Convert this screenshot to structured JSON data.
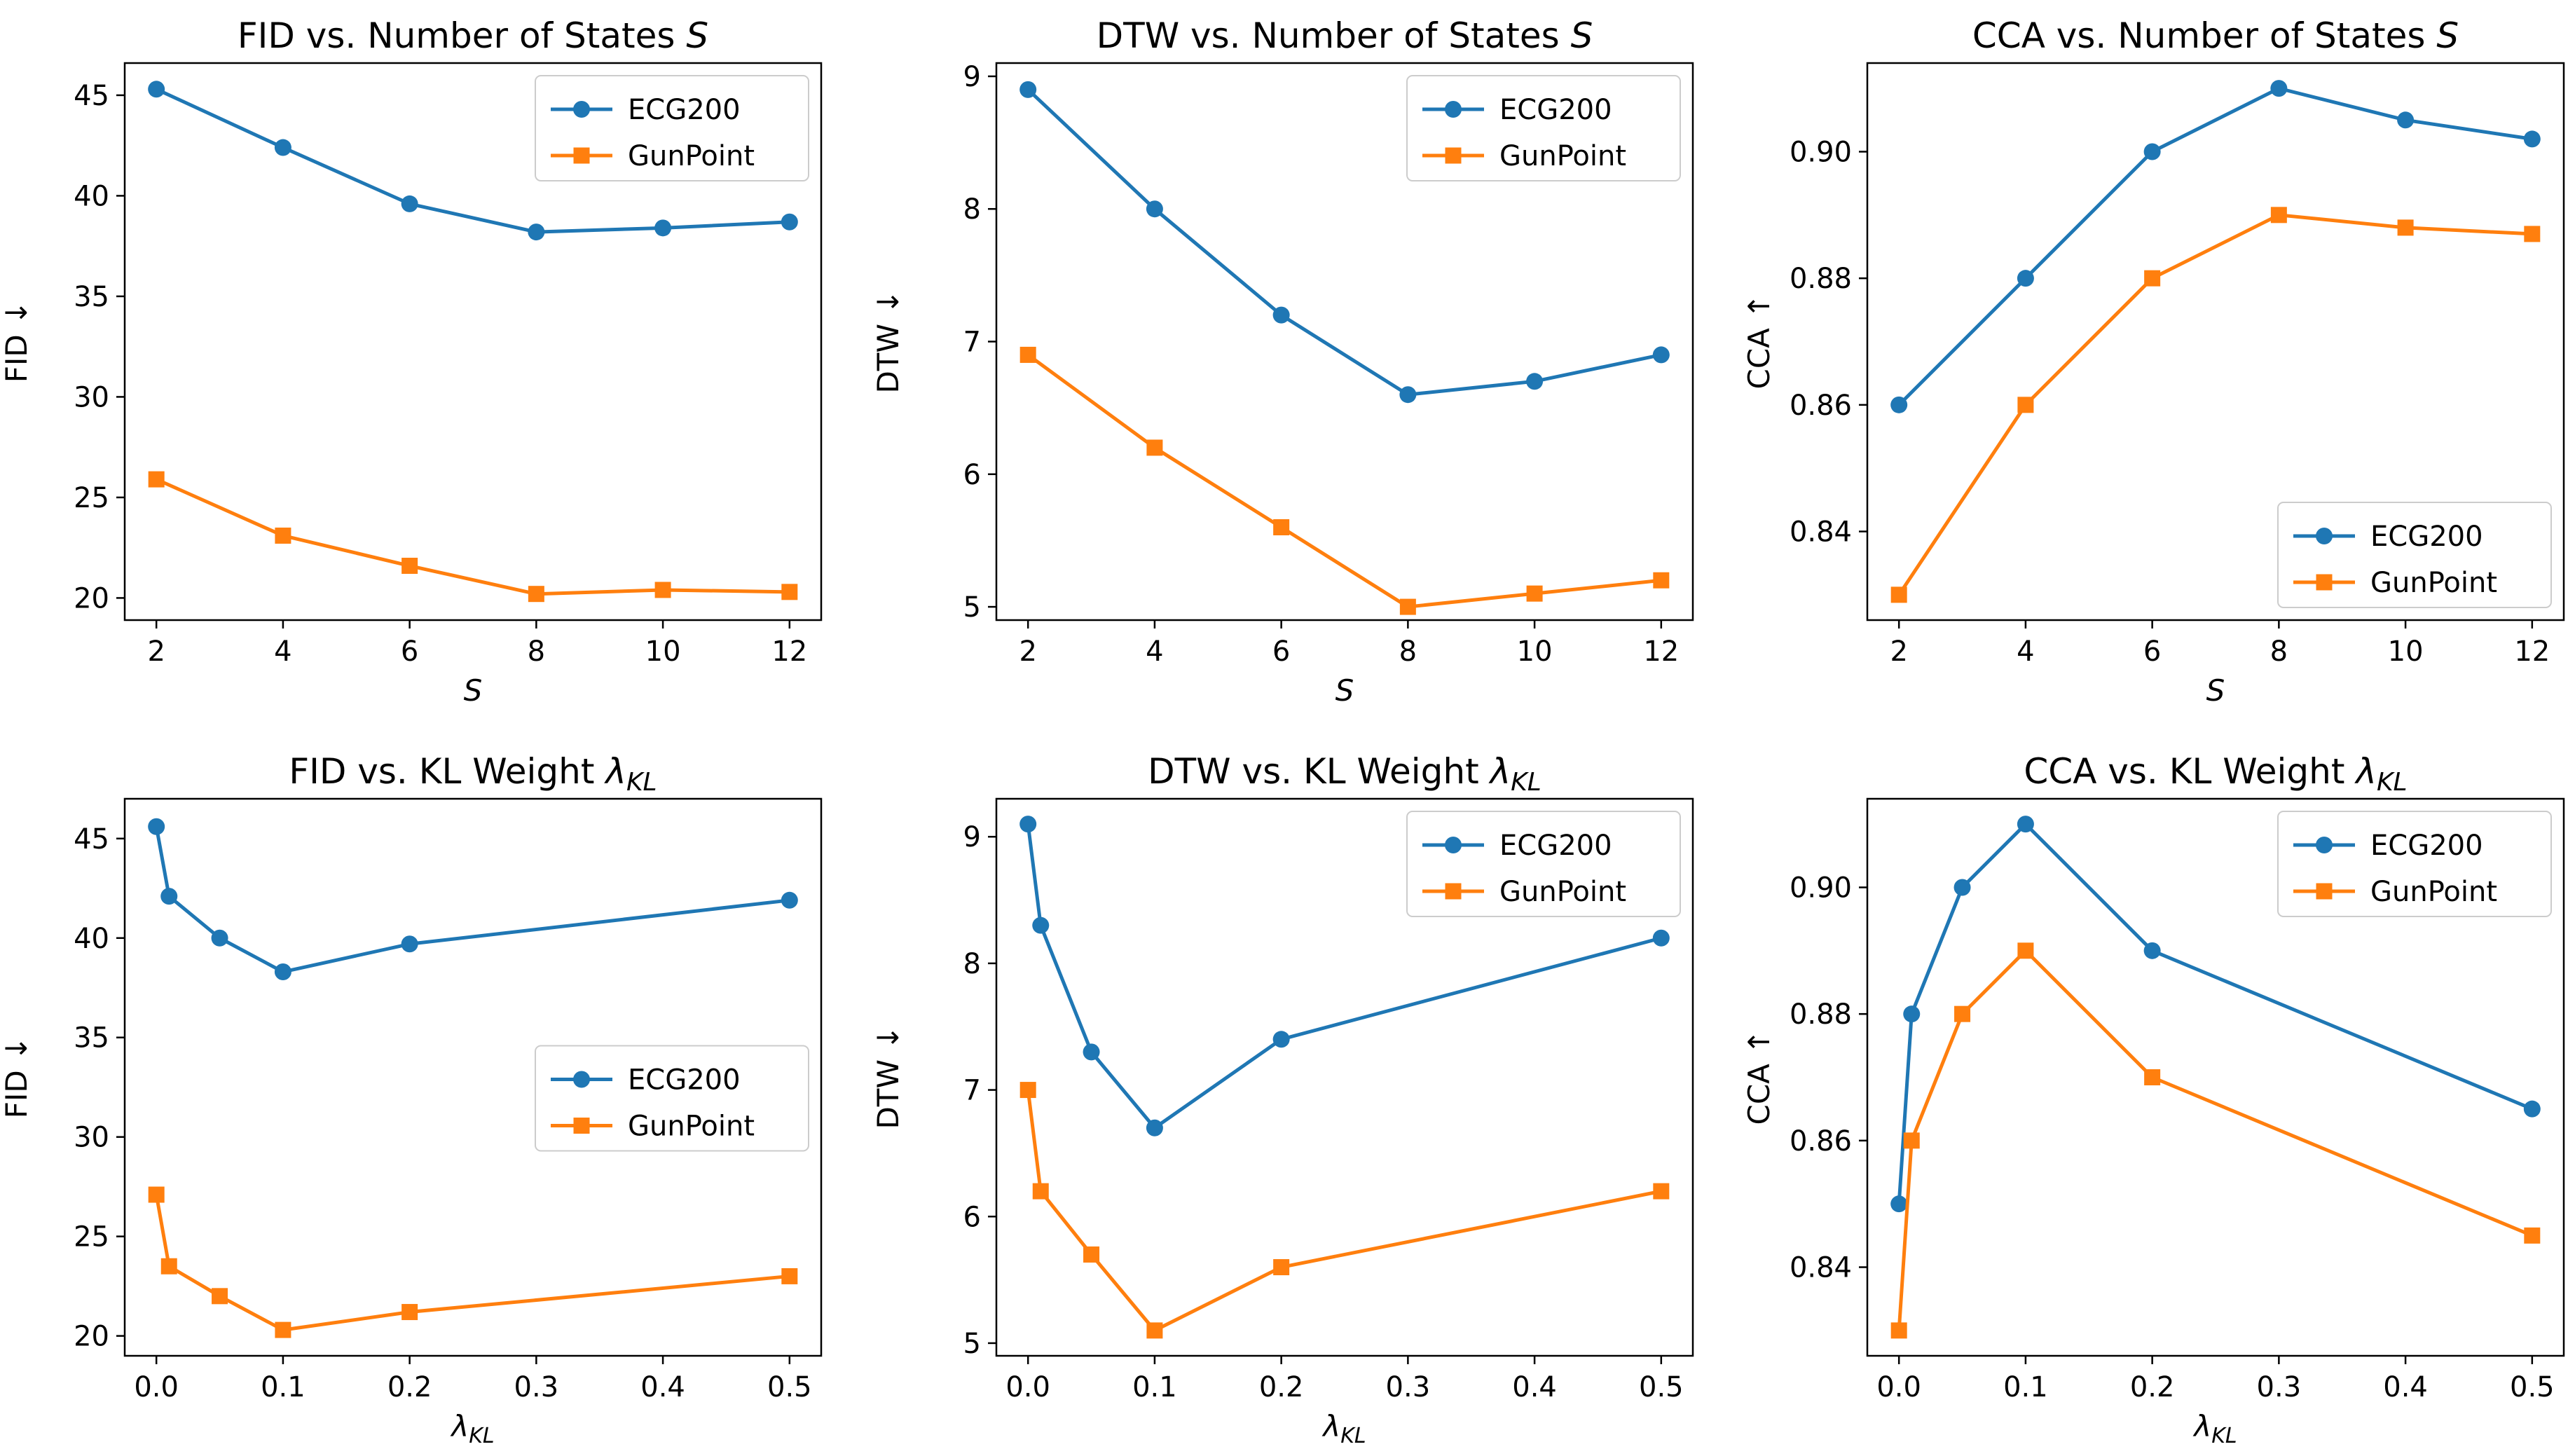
{
  "figure": {
    "colors": {
      "ECG200": "#1f77b4",
      "GunPoint": "#ff7f0e"
    },
    "markers": {
      "ECG200": "circle",
      "GunPoint": "square"
    }
  },
  "chart_data": [
    {
      "type": "line",
      "title_prefix": "FID vs. Number of States ",
      "title_symbol": "S",
      "title_subscript": "",
      "xlabel": "S",
      "xlabel_subscript": "",
      "ylabel": "FID ↓",
      "x": [
        2,
        4,
        6,
        8,
        10,
        12
      ],
      "xlim": [
        1.5,
        12.5
      ],
      "ylim": [
        18.9,
        46.6
      ],
      "xticks": [
        2,
        4,
        6,
        8,
        10,
        12
      ],
      "xtick_labels": [
        "2",
        "4",
        "6",
        "8",
        "10",
        "12"
      ],
      "yticks": [
        20,
        25,
        30,
        35,
        40,
        45
      ],
      "ytick_labels": [
        "20",
        "25",
        "30",
        "35",
        "40",
        "45"
      ],
      "legend": "upper right",
      "series": [
        {
          "name": "ECG200",
          "values": [
            45.3,
            42.4,
            39.6,
            38.2,
            38.4,
            38.7
          ]
        },
        {
          "name": "GunPoint",
          "values": [
            25.9,
            23.1,
            21.6,
            20.2,
            20.4,
            20.3
          ]
        }
      ]
    },
    {
      "type": "line",
      "title_prefix": "DTW vs. Number of States ",
      "title_symbol": "S",
      "title_subscript": "",
      "xlabel": "S",
      "xlabel_subscript": "",
      "ylabel": "DTW ↓",
      "x": [
        2,
        4,
        6,
        8,
        10,
        12
      ],
      "xlim": [
        1.5,
        12.5
      ],
      "ylim": [
        4.9,
        9.1
      ],
      "xticks": [
        2,
        4,
        6,
        8,
        10,
        12
      ],
      "xtick_labels": [
        "2",
        "4",
        "6",
        "8",
        "10",
        "12"
      ],
      "yticks": [
        5,
        6,
        7,
        8,
        9
      ],
      "ytick_labels": [
        "5",
        "6",
        "7",
        "8",
        "9"
      ],
      "legend": "upper right",
      "series": [
        {
          "name": "ECG200",
          "values": [
            8.9,
            8.0,
            7.2,
            6.6,
            6.7,
            6.9
          ]
        },
        {
          "name": "GunPoint",
          "values": [
            6.9,
            6.2,
            5.6,
            5.0,
            5.1,
            5.2
          ]
        }
      ]
    },
    {
      "type": "line",
      "title_prefix": "CCA vs. Number of States ",
      "title_symbol": "S",
      "title_subscript": "",
      "xlabel": "S",
      "xlabel_subscript": "",
      "ylabel": "CCA ↑",
      "x": [
        2,
        4,
        6,
        8,
        10,
        12
      ],
      "xlim": [
        1.5,
        12.5
      ],
      "ylim": [
        0.826,
        0.914
      ],
      "xticks": [
        2,
        4,
        6,
        8,
        10,
        12
      ],
      "xtick_labels": [
        "2",
        "4",
        "6",
        "8",
        "10",
        "12"
      ],
      "yticks": [
        0.84,
        0.86,
        0.88,
        0.9
      ],
      "ytick_labels": [
        "0.84",
        "0.86",
        "0.88",
        "0.90"
      ],
      "legend": "lower right",
      "series": [
        {
          "name": "ECG200",
          "values": [
            0.86,
            0.88,
            0.9,
            0.91,
            0.905,
            0.902
          ]
        },
        {
          "name": "GunPoint",
          "values": [
            0.83,
            0.86,
            0.88,
            0.89,
            0.888,
            0.887
          ]
        }
      ]
    },
    {
      "type": "line",
      "title_prefix": "FID vs. KL Weight ",
      "title_symbol": "λ",
      "title_subscript": "KL",
      "xlabel": "λ",
      "xlabel_subscript": "KL",
      "ylabel": "FID ↓",
      "x": [
        0.0,
        0.01,
        0.05,
        0.1,
        0.2,
        0.5
      ],
      "xlim": [
        -0.025,
        0.525
      ],
      "ylim": [
        19.0,
        47.0
      ],
      "xticks": [
        0.0,
        0.1,
        0.2,
        0.3,
        0.4,
        0.5
      ],
      "xtick_labels": [
        "0.0",
        "0.1",
        "0.2",
        "0.3",
        "0.4",
        "0.5"
      ],
      "yticks": [
        20,
        25,
        30,
        35,
        40,
        45
      ],
      "ytick_labels": [
        "20",
        "25",
        "30",
        "35",
        "40",
        "45"
      ],
      "legend": "center right",
      "series": [
        {
          "name": "ECG200",
          "values": [
            45.6,
            42.1,
            40.0,
            38.3,
            39.7,
            41.9
          ]
        },
        {
          "name": "GunPoint",
          "values": [
            27.1,
            23.5,
            22.0,
            20.3,
            21.2,
            23.0
          ]
        }
      ]
    },
    {
      "type": "line",
      "title_prefix": "DTW vs. KL Weight ",
      "title_symbol": "λ",
      "title_subscript": "KL",
      "xlabel": "λ",
      "xlabel_subscript": "KL",
      "ylabel": "DTW ↓",
      "x": [
        0.0,
        0.01,
        0.05,
        0.1,
        0.2,
        0.5
      ],
      "xlim": [
        -0.025,
        0.525
      ],
      "ylim": [
        4.9,
        9.3
      ],
      "xticks": [
        0.0,
        0.1,
        0.2,
        0.3,
        0.4,
        0.5
      ],
      "xtick_labels": [
        "0.0",
        "0.1",
        "0.2",
        "0.3",
        "0.4",
        "0.5"
      ],
      "yticks": [
        5,
        6,
        7,
        8,
        9
      ],
      "ytick_labels": [
        "5",
        "6",
        "7",
        "8",
        "9"
      ],
      "legend": "upper right",
      "series": [
        {
          "name": "ECG200",
          "values": [
            9.1,
            8.3,
            7.3,
            6.7,
            7.4,
            8.2
          ]
        },
        {
          "name": "GunPoint",
          "values": [
            7.0,
            6.2,
            5.7,
            5.1,
            5.6,
            6.2
          ]
        }
      ]
    },
    {
      "type": "line",
      "title_prefix": "CCA vs. KL Weight ",
      "title_symbol": "λ",
      "title_subscript": "KL",
      "xlabel": "λ",
      "xlabel_subscript": "KL",
      "ylabel": "CCA ↑",
      "x": [
        0.0,
        0.01,
        0.05,
        0.1,
        0.2,
        0.5
      ],
      "xlim": [
        -0.025,
        0.525
      ],
      "ylim": [
        0.826,
        0.914
      ],
      "xticks": [
        0.0,
        0.1,
        0.2,
        0.3,
        0.4,
        0.5
      ],
      "xtick_labels": [
        "0.0",
        "0.1",
        "0.2",
        "0.3",
        "0.4",
        "0.5"
      ],
      "yticks": [
        0.84,
        0.86,
        0.88,
        0.9
      ],
      "ytick_labels": [
        "0.84",
        "0.86",
        "0.88",
        "0.90"
      ],
      "legend": "upper right",
      "series": [
        {
          "name": "ECG200",
          "values": [
            0.85,
            0.88,
            0.9,
            0.91,
            0.89,
            0.865
          ]
        },
        {
          "name": "GunPoint",
          "values": [
            0.83,
            0.86,
            0.88,
            0.89,
            0.87,
            0.845
          ]
        }
      ]
    }
  ]
}
